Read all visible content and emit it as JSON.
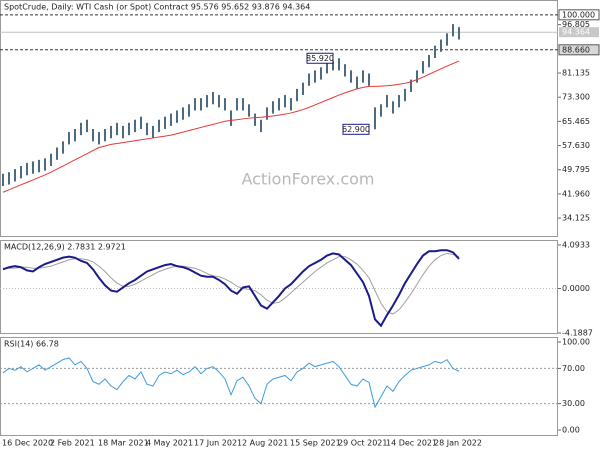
{
  "chart_data": {
    "type": "ohlc",
    "title": "SpotCrude, Daily:  WTI Cash (or Spot) Contract  95.576 95.652 93.876 94.364",
    "watermark": "ActionForex.com",
    "categories": [
      "16 Dec 2020",
      null,
      null,
      null,
      null,
      null,
      null,
      null,
      "2 Feb 2021",
      null,
      null,
      null,
      null,
      null,
      null,
      null,
      "18 Mar 2021",
      null,
      null,
      null,
      null,
      null,
      null,
      null,
      "4 May 2021",
      null,
      null,
      null,
      null,
      null,
      null,
      null,
      "17 Jun 2021",
      null,
      null,
      null,
      null,
      null,
      null,
      null,
      "2 Aug 2021",
      null,
      null,
      null,
      null,
      null,
      null,
      null,
      "15 Sep 2021",
      null,
      null,
      null,
      null,
      null,
      null,
      null,
      "29 Oct 2021",
      null,
      null,
      null,
      null,
      null,
      null,
      null,
      "14 Dec 2021",
      null,
      null,
      null,
      null,
      null,
      null,
      null,
      "28 Jan 2022",
      null,
      null,
      null,
      null
    ],
    "price": {
      "ylim": [
        28,
        104.8
      ],
      "yticks": [
        34.125,
        {
          "value": 41.96,
          "label": "41.960"
        },
        49.795,
        {
          "value": 57.63,
          "label": "57.630"
        },
        65.465,
        {
          "value": 73.3,
          "label": "73.300"
        },
        81.135,
        96.805
      ],
      "color": "#4d6b80",
      "high": [
        48.5,
        49,
        50,
        51,
        52,
        52.5,
        53,
        53.5,
        55,
        57,
        59,
        62,
        63,
        65,
        66,
        63,
        62,
        63,
        64,
        65,
        64,
        65,
        66,
        67,
        65,
        64,
        66,
        67,
        68,
        69,
        70,
        71,
        73,
        73,
        74,
        75,
        74,
        73,
        69,
        73,
        73,
        71,
        68,
        66,
        70,
        72,
        73,
        74,
        73,
        76,
        78,
        81,
        82,
        83,
        85,
        85,
        85.92,
        84,
        82,
        80,
        82,
        81,
        70,
        71,
        74,
        72,
        74,
        76,
        79,
        82,
        85,
        87,
        90,
        92,
        94,
        97,
        96
      ],
      "low": [
        44.5,
        45,
        46,
        47,
        48,
        48.5,
        49,
        49.5,
        51,
        53,
        55,
        58,
        59,
        61,
        62,
        59,
        58,
        59,
        60,
        61,
        60,
        61,
        62,
        63,
        61,
        60,
        62,
        63,
        64,
        65,
        66,
        67,
        69,
        69,
        70,
        71,
        70,
        69,
        64,
        69,
        69,
        67,
        64,
        62,
        66,
        68,
        69,
        70,
        69,
        72,
        74,
        77,
        78,
        79,
        81,
        82,
        82,
        80,
        78,
        76,
        78,
        77,
        62.9,
        67,
        70,
        68,
        70,
        72,
        75,
        78,
        81,
        83,
        86,
        88,
        90,
        93,
        92
      ],
      "ma": {
        "color": "#e53935",
        "values": [
          42.5,
          43.3,
          44.1,
          44.9,
          45.7,
          46.5,
          47.3,
          48.1,
          49,
          50,
          51,
          52,
          53,
          54,
          55,
          56,
          57,
          57.5,
          58,
          58.3,
          58.6,
          58.9,
          59.2,
          59.5,
          59.8,
          60.1,
          60.4,
          60.7,
          61,
          61.5,
          62,
          62.5,
          63,
          63.5,
          64,
          64.5,
          65,
          65.5,
          65.8,
          66,
          66.3,
          66.5,
          66.7,
          66.8,
          67,
          67.2,
          67.5,
          67.8,
          68.2,
          68.7,
          69.3,
          70,
          70.8,
          71.6,
          72.4,
          73.2,
          74,
          74.7,
          75.4,
          76,
          76.5,
          76.8,
          76.8,
          76.9,
          77,
          77.2,
          77.5,
          77.8,
          78.3,
          79,
          79.8,
          80.7,
          81.6,
          82.5,
          83.4,
          84.2,
          85
        ]
      },
      "levels": [
        {
          "value": 100,
          "label": "100.000"
        },
        {
          "value": 88.66,
          "label": "88.660"
        }
      ],
      "last": {
        "value": 94.364,
        "label": "94.364"
      },
      "annotations": [
        {
          "value": 85.92,
          "label": "85.920"
        },
        {
          "value": 62.9,
          "label": "62.900"
        }
      ]
    },
    "macd": {
      "title": "MACD(12,26,9) 2.7831 2.9721",
      "ylim": [
        -4.28,
        4.56
      ],
      "yticks": [
        4.0933,
        {
          "value": 0,
          "label": "0.0000"
        },
        -4.1887
      ],
      "main": {
        "color": "#1a1a8c",
        "values": [
          1.8,
          2.0,
          2.1,
          2.0,
          1.7,
          1.6,
          2.0,
          2.3,
          2.5,
          2.7,
          2.9,
          3.0,
          2.9,
          2.6,
          2.4,
          1.8,
          1.0,
          0.3,
          -0.2,
          -0.3,
          0.1,
          0.5,
          0.8,
          1.2,
          1.6,
          1.8,
          2.0,
          2.2,
          2.3,
          2.1,
          2.0,
          1.8,
          1.5,
          1.2,
          1.1,
          1.1,
          0.8,
          0.4,
          -0.2,
          -0.5,
          0.1,
          0.2,
          -0.7,
          -1.6,
          -1.9,
          -1.3,
          -0.7,
          0.0,
          0.4,
          1.0,
          1.6,
          2.1,
          2.4,
          2.7,
          3.1,
          3.3,
          3.2,
          2.7,
          2.2,
          1.4,
          0.6,
          -0.7,
          -2.9,
          -3.5,
          -2.5,
          -1.6,
          -0.6,
          0.5,
          1.4,
          2.3,
          3.1,
          3.5,
          3.5,
          3.6,
          3.6,
          3.4,
          2.7831
        ]
      },
      "signal": {
        "color": "#a0a0a0",
        "values": [
          1.9,
          1.9,
          1.9,
          2.0,
          2.0,
          1.9,
          1.9,
          2.0,
          2.1,
          2.3,
          2.5,
          2.7,
          2.8,
          2.8,
          2.7,
          2.5,
          2.1,
          1.6,
          1.0,
          0.5,
          0.2,
          0.2,
          0.4,
          0.7,
          1.0,
          1.3,
          1.6,
          1.8,
          2.0,
          2.1,
          2.1,
          2.0,
          1.9,
          1.7,
          1.4,
          1.2,
          1.1,
          0.9,
          0.6,
          0.2,
          0.0,
          -0.1,
          -0.2,
          -0.6,
          -1.1,
          -1.4,
          -1.3,
          -0.9,
          -0.4,
          0.1,
          0.6,
          1.1,
          1.6,
          2.0,
          2.4,
          2.7,
          3.0,
          3.0,
          2.7,
          2.3,
          1.7,
          1.0,
          -0.2,
          -1.4,
          -2.2,
          -2.4,
          -2.0,
          -1.3,
          -0.5,
          0.4,
          1.3,
          2.1,
          2.7,
          3.1,
          3.3,
          3.2,
          2.9721
        ]
      }
    },
    "rsi": {
      "title": "RSI(14) 66.78",
      "ylim": [
        -6.8,
        105.7
      ],
      "yticks": [
        {
          "value": 100,
          "label": "100.00"
        },
        {
          "value": 70,
          "label": "70.00"
        },
        {
          "value": 30,
          "label": "30.00"
        },
        {
          "value": 0,
          "label": "0.00"
        }
      ],
      "levels": [
        70,
        30
      ],
      "color": "#3d9be0",
      "values": [
        65,
        70,
        68,
        72,
        66,
        70,
        74,
        68,
        72,
        76,
        80,
        82,
        74,
        78,
        70,
        55,
        52,
        58,
        50,
        46,
        55,
        62,
        58,
        66,
        52,
        50,
        62,
        66,
        64,
        68,
        63,
        66,
        72,
        64,
        70,
        72,
        66,
        58,
        40,
        56,
        60,
        50,
        36,
        30,
        52,
        58,
        60,
        62,
        56,
        66,
        70,
        76,
        72,
        74,
        76,
        78,
        72,
        62,
        52,
        50,
        58,
        54,
        26,
        38,
        50,
        44,
        55,
        62,
        68,
        70,
        72,
        74,
        78,
        76,
        80,
        70,
        66.78
      ]
    }
  }
}
